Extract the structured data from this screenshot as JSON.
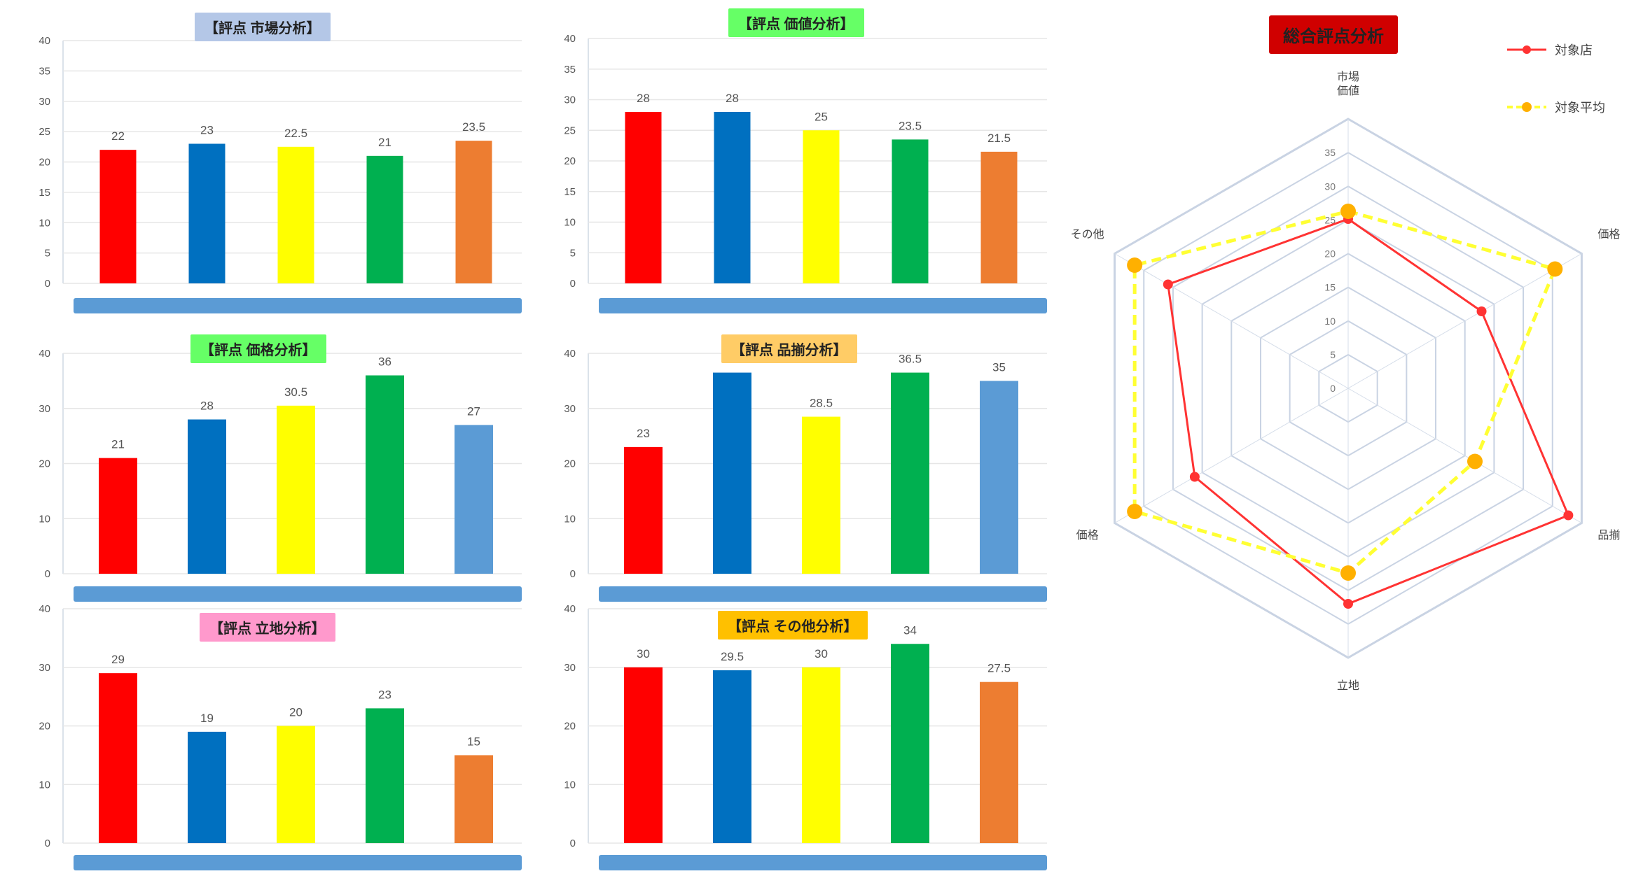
{
  "chart_data": [
    {
      "type": "bar",
      "title": "【評点 市場分析】",
      "title_bg": "#b4c7e7",
      "categories": [
        "",
        "",
        "",
        "",
        ""
      ],
      "values": [
        22,
        23,
        22.5,
        21,
        23.5
      ],
      "value_labels": [
        "22",
        "23",
        "22.5",
        "21",
        "23.5"
      ],
      "bar_colors": [
        "#ff0000",
        "#0070c0",
        "#ffff00",
        "#00b050",
        "#ed7d31"
      ],
      "yticks": [
        "0",
        "5",
        "10",
        "15",
        "20",
        "25",
        "30",
        "35",
        "40"
      ],
      "ylim": [
        0,
        40
      ],
      "grid": true
    },
    {
      "type": "bar",
      "title": "【評点 価値分析】",
      "title_bg": "#66ff66",
      "categories": [
        "",
        "",
        "",
        "",
        ""
      ],
      "values": [
        28,
        28,
        25,
        23.5,
        21.5
      ],
      "value_labels": [
        "28",
        "28",
        "25",
        "23.5",
        "21.5"
      ],
      "bar_colors": [
        "#ff0000",
        "#0070c0",
        "#ffff00",
        "#00b050",
        "#ed7d31"
      ],
      "yticks": [
        "0",
        "5",
        "10",
        "15",
        "20",
        "25",
        "30",
        "35",
        "40"
      ],
      "ylim": [
        0,
        40
      ],
      "grid": true
    },
    {
      "type": "bar",
      "title": "【評点 価格分析】",
      "title_bg": "#66ff66",
      "categories": [
        "",
        "",
        "",
        "",
        ""
      ],
      "values": [
        21,
        28,
        30.5,
        36,
        27
      ],
      "value_labels": [
        "21",
        "28",
        "30.5",
        "36",
        "27"
      ],
      "bar_colors": [
        "#ff0000",
        "#0070c0",
        "#ffff00",
        "#00b050",
        "#5b9bd5"
      ],
      "yticks": [
        "0",
        "10",
        "20",
        "30",
        "40"
      ],
      "ylim": [
        0,
        40
      ],
      "grid": true
    },
    {
      "type": "bar",
      "title": "【評点 品揃分析】",
      "title_bg": "#ffcc66",
      "categories": [
        "",
        "",
        "",
        "",
        ""
      ],
      "values": [
        23,
        36.5,
        28.5,
        36.5,
        35
      ],
      "value_labels": [
        "23",
        "",
        "28.5",
        "36.5",
        "35"
      ],
      "bar_colors": [
        "#ff0000",
        "#0070c0",
        "#ffff00",
        "#00b050",
        "#5b9bd5"
      ],
      "yticks": [
        "0",
        "10",
        "20",
        "30",
        "40"
      ],
      "ylim": [
        0,
        40
      ],
      "grid": true
    },
    {
      "type": "bar",
      "title": "【評点 立地分析】",
      "title_bg": "#ff99cc",
      "categories": [
        "",
        "",
        "",
        "",
        ""
      ],
      "values": [
        29,
        19,
        20,
        23,
        15
      ],
      "value_labels": [
        "29",
        "19",
        "20",
        "23",
        "15"
      ],
      "bar_colors": [
        "#ff0000",
        "#0070c0",
        "#ffff00",
        "#00b050",
        "#ed7d31"
      ],
      "yticks": [
        "0",
        "10",
        "20",
        "30",
        "40"
      ],
      "ylim": [
        0,
        40
      ],
      "grid": true
    },
    {
      "type": "bar",
      "title": "【評点 その他分析】",
      "title_bg": "#ffc000",
      "categories": [
        "",
        "",
        "",
        "",
        ""
      ],
      "values": [
        30,
        29.5,
        30,
        34,
        27.5
      ],
      "value_labels": [
        "30",
        "29.5",
        "30",
        "34",
        "27.5"
      ],
      "bar_colors": [
        "#ff0000",
        "#0070c0",
        "#ffff00",
        "#00b050",
        "#ed7d31"
      ],
      "yticks": [
        "0",
        "10",
        "20",
        "30",
        "40"
      ],
      "ylim": [
        0,
        40
      ],
      "grid": true
    },
    {
      "type": "radar",
      "title": "総合評点分析",
      "title_bg": "#d00000",
      "axes": [
        "市場\n価値",
        "価格",
        "品揃",
        "立地",
        "価格",
        "その他"
      ],
      "ticks": [
        "0",
        "5",
        "10",
        "15",
        "20",
        "25",
        "30",
        "35"
      ],
      "rlim": [
        0,
        35
      ],
      "series": [
        {
          "name": "対象店",
          "color": "#ff3333",
          "values": [
            22,
            20,
            33,
            28,
            23,
            27
          ]
        },
        {
          "name": "対象平均",
          "color": "#ffb000",
          "line_color": "#ffff33",
          "values": [
            23,
            31,
            19,
            24,
            32,
            32
          ]
        }
      ],
      "legend": "top-right"
    }
  ]
}
